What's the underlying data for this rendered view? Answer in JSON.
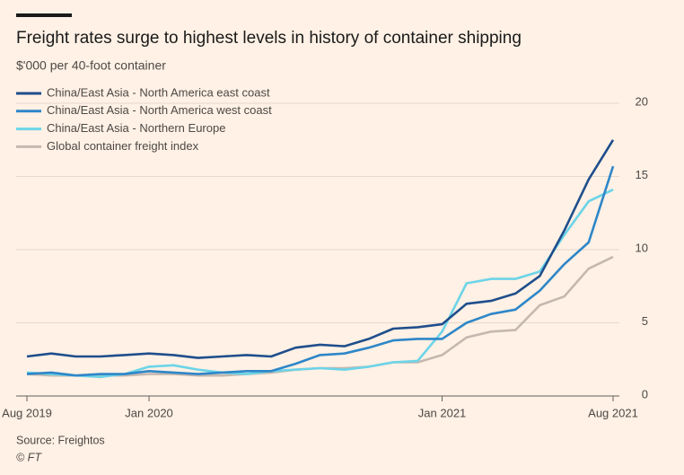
{
  "chart_data": {
    "type": "line",
    "title": "Freight rates surge to highest levels in history of container shipping",
    "subtitle": "$'000 per 40-foot container",
    "source": "Source: Freightos",
    "credit": "© FT",
    "x": [
      "2019-08",
      "2019-09",
      "2019-10",
      "2019-11",
      "2019-12",
      "2020-01",
      "2020-02",
      "2020-03",
      "2020-04",
      "2020-05",
      "2020-06",
      "2020-07",
      "2020-08",
      "2020-09",
      "2020-10",
      "2020-11",
      "2020-12",
      "2021-01",
      "2021-02",
      "2021-03",
      "2021-04",
      "2021-05",
      "2021-06",
      "2021-07",
      "2021-08"
    ],
    "xticks": [
      {
        "value": "2019-08",
        "label": "Aug 2019"
      },
      {
        "value": "2020-01",
        "label": "Jan 2020"
      },
      {
        "value": "2021-01",
        "label": "Jan 2021"
      },
      {
        "value": "2021-08",
        "label": "Aug 2021"
      }
    ],
    "ylim": [
      0,
      21
    ],
    "yticks": [
      0,
      5,
      10,
      15,
      20
    ],
    "grid": true,
    "series": [
      {
        "name": "China/East Asia - North America east coast",
        "color": "#1f4e8c",
        "values": [
          2.7,
          2.9,
          2.7,
          2.7,
          2.8,
          2.9,
          2.8,
          2.6,
          2.7,
          2.8,
          2.7,
          3.3,
          3.5,
          3.4,
          3.9,
          4.6,
          4.7,
          4.9,
          6.3,
          6.5,
          7.0,
          8.2,
          11.3,
          14.8,
          17.5
        ]
      },
      {
        "name": "China/East Asia - North America west coast",
        "color": "#2e86c8",
        "values": [
          1.5,
          1.6,
          1.4,
          1.5,
          1.5,
          1.7,
          1.6,
          1.5,
          1.6,
          1.7,
          1.7,
          2.2,
          2.8,
          2.9,
          3.3,
          3.8,
          3.9,
          3.9,
          5.0,
          5.6,
          5.9,
          7.2,
          9.0,
          10.5,
          15.7
        ]
      },
      {
        "name": "China/East Asia - Northern Europe",
        "color": "#6cd4e8",
        "values": [
          1.6,
          1.5,
          1.4,
          1.3,
          1.5,
          2.0,
          2.1,
          1.8,
          1.6,
          1.5,
          1.7,
          1.8,
          1.9,
          1.8,
          2.0,
          2.3,
          2.4,
          4.4,
          7.7,
          8.0,
          8.0,
          8.5,
          11.0,
          13.3,
          14.1
        ]
      },
      {
        "name": "Global container freight index",
        "color": "#c4b8b0",
        "values": [
          1.5,
          1.4,
          1.4,
          1.4,
          1.4,
          1.5,
          1.5,
          1.4,
          1.4,
          1.5,
          1.6,
          1.8,
          1.9,
          1.9,
          2.0,
          2.3,
          2.3,
          2.8,
          4.0,
          4.4,
          4.5,
          6.2,
          6.8,
          8.7,
          9.5
        ]
      }
    ]
  }
}
